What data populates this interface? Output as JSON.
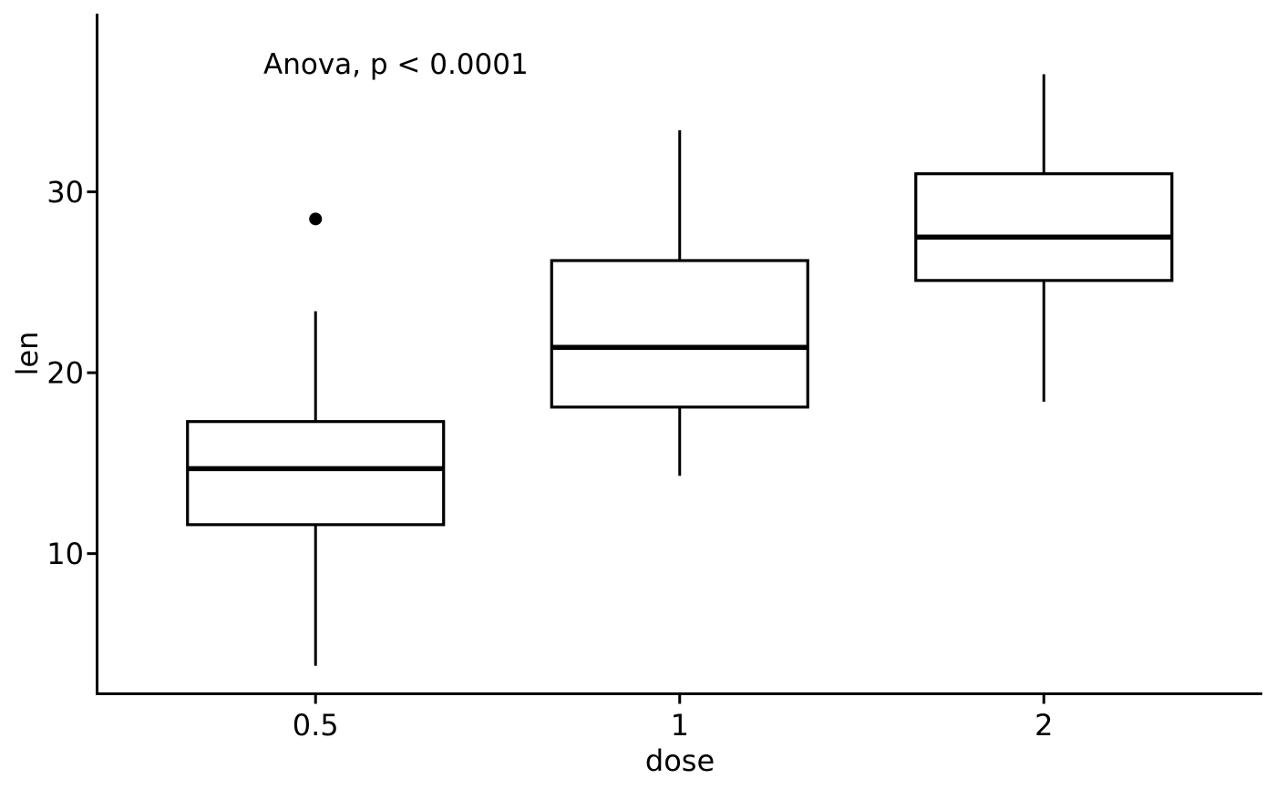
{
  "chart_data": {
    "type": "boxplot",
    "annotation": "Anova, p < 0.0001",
    "xlabel": "dose",
    "ylabel": "len",
    "categories": [
      "0.5",
      "1",
      "2"
    ],
    "yticks": [
      10,
      20,
      30
    ],
    "ylim": [
      2.25,
      39.85
    ],
    "grid": false,
    "legend": "none",
    "boxes": [
      {
        "category": "0.5",
        "whisker_low": 3.8,
        "q1": 11.6,
        "median": 14.7,
        "q3": 17.3,
        "whisker_high": 23.4,
        "outliers": [
          28.5
        ]
      },
      {
        "category": "1",
        "whisker_low": 14.3,
        "q1": 18.1,
        "median": 21.4,
        "q3": 26.2,
        "whisker_high": 33.4,
        "outliers": []
      },
      {
        "category": "2",
        "whisker_low": 18.4,
        "q1": 25.1,
        "median": 27.5,
        "q3": 31.0,
        "whisker_high": 36.5,
        "outliers": []
      }
    ],
    "colors": {
      "stroke": "#000000",
      "box_fill": "#ffffff",
      "text": "#000000",
      "background": "#ffffff"
    }
  }
}
